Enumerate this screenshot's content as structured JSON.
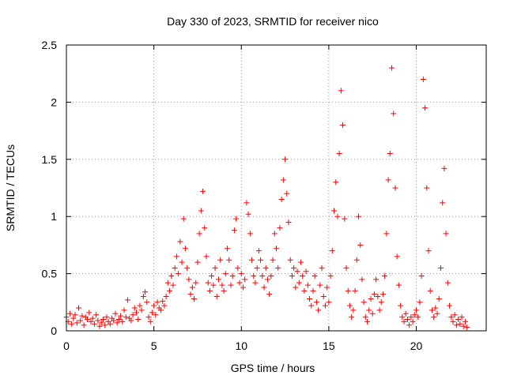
{
  "chart_data": {
    "type": "scatter",
    "title": "Day 330 of 2023, SRMTID for receiver nico",
    "xlabel": "GPS time / hours",
    "ylabel": "SRMTID / TECUs",
    "xlim": [
      0,
      24
    ],
    "ylim": [
      0,
      2.5
    ],
    "x_ticks": [
      0,
      5,
      10,
      15,
      20
    ],
    "x_tick_labels": [
      "0",
      "5",
      "10",
      "15",
      "20"
    ],
    "y_ticks": [
      0,
      0.5,
      1,
      1.5,
      2,
      2.5
    ],
    "y_tick_labels": [
      "0",
      "0.5",
      "1",
      "1.5",
      "2",
      "2.5"
    ],
    "grid": true,
    "marker": "+",
    "color": "#ff0000",
    "series": [
      {
        "name": "SRMTID",
        "points": [
          [
            0.0,
            0.12
          ],
          [
            0.1,
            0.08
          ],
          [
            0.2,
            0.15
          ],
          [
            0.3,
            0.06
          ],
          [
            0.4,
            0.11
          ],
          [
            0.5,
            0.14
          ],
          [
            0.6,
            0.07
          ],
          [
            0.7,
            0.2
          ],
          [
            0.8,
            0.09
          ],
          [
            0.9,
            0.13
          ],
          [
            1.0,
            0.05
          ],
          [
            1.1,
            0.12
          ],
          [
            1.2,
            0.1
          ],
          [
            1.3,
            0.16
          ],
          [
            1.4,
            0.08
          ],
          [
            1.5,
            0.11
          ],
          [
            1.6,
            0.06
          ],
          [
            1.7,
            0.14
          ],
          [
            1.8,
            0.09
          ],
          [
            1.9,
            0.04
          ],
          [
            2.0,
            0.07
          ],
          [
            2.1,
            0.1
          ],
          [
            2.2,
            0.05
          ],
          [
            2.3,
            0.12
          ],
          [
            2.4,
            0.08
          ],
          [
            2.5,
            0.06
          ],
          [
            2.6,
            0.11
          ],
          [
            2.7,
            0.09
          ],
          [
            2.8,
            0.15
          ],
          [
            2.9,
            0.07
          ],
          [
            3.0,
            0.1
          ],
          [
            3.1,
            0.13
          ],
          [
            3.2,
            0.08
          ],
          [
            3.3,
            0.18
          ],
          [
            3.4,
            0.12
          ],
          [
            3.5,
            0.27
          ],
          [
            3.6,
            0.11
          ],
          [
            3.7,
            0.09
          ],
          [
            3.8,
            0.14
          ],
          [
            3.9,
            0.2
          ],
          [
            4.0,
            0.16
          ],
          [
            4.1,
            0.1
          ],
          [
            4.2,
            0.22
          ],
          [
            4.3,
            0.18
          ],
          [
            4.4,
            0.3
          ],
          [
            4.5,
            0.34
          ],
          [
            4.6,
            0.25
          ],
          [
            4.7,
            0.12
          ],
          [
            4.8,
            0.08
          ],
          [
            4.9,
            0.16
          ],
          [
            5.0,
            0.22
          ],
          [
            5.1,
            0.14
          ],
          [
            5.2,
            0.25
          ],
          [
            5.3,
            0.2
          ],
          [
            5.4,
            0.18
          ],
          [
            5.5,
            0.26
          ],
          [
            5.6,
            0.22
          ],
          [
            5.7,
            0.3
          ],
          [
            5.8,
            0.42
          ],
          [
            5.9,
            0.35
          ],
          [
            6.0,
            0.48
          ],
          [
            6.1,
            0.4
          ],
          [
            6.2,
            0.55
          ],
          [
            6.3,
            0.65
          ],
          [
            6.4,
            0.5
          ],
          [
            6.5,
            0.78
          ],
          [
            6.6,
            0.6
          ],
          [
            6.7,
            0.98
          ],
          [
            6.8,
            0.72
          ],
          [
            6.9,
            0.55
          ],
          [
            7.0,
            0.45
          ],
          [
            7.1,
            0.32
          ],
          [
            7.2,
            0.38
          ],
          [
            7.3,
            0.28
          ],
          [
            7.4,
            0.42
          ],
          [
            7.5,
            0.6
          ],
          [
            7.6,
            0.85
          ],
          [
            7.7,
            1.05
          ],
          [
            7.8,
            1.22
          ],
          [
            7.9,
            0.9
          ],
          [
            8.0,
            0.65
          ],
          [
            8.1,
            0.42
          ],
          [
            8.2,
            0.35
          ],
          [
            8.3,
            0.48
          ],
          [
            8.4,
            0.4
          ],
          [
            8.5,
            0.55
          ],
          [
            8.6,
            0.3
          ],
          [
            8.7,
            0.45
          ],
          [
            8.8,
            0.62
          ],
          [
            8.9,
            0.4
          ],
          [
            9.0,
            0.35
          ],
          [
            9.1,
            0.5
          ],
          [
            9.2,
            0.72
          ],
          [
            9.3,
            0.62
          ],
          [
            9.4,
            0.4
          ],
          [
            9.5,
            0.48
          ],
          [
            9.6,
            0.88
          ],
          [
            9.7,
            0.98
          ],
          [
            9.8,
            0.55
          ],
          [
            9.9,
            0.42
          ],
          [
            10.0,
            0.5
          ],
          [
            10.1,
            0.38
          ],
          [
            10.2,
            0.45
          ],
          [
            10.3,
            1.12
          ],
          [
            10.4,
            1.02
          ],
          [
            10.5,
            0.85
          ],
          [
            10.6,
            0.62
          ],
          [
            10.7,
            0.48
          ],
          [
            10.8,
            0.42
          ],
          [
            10.9,
            0.55
          ],
          [
            11.0,
            0.7
          ],
          [
            11.1,
            0.62
          ],
          [
            11.2,
            0.48
          ],
          [
            11.3,
            0.38
          ],
          [
            11.4,
            0.55
          ],
          [
            11.5,
            0.45
          ],
          [
            11.6,
            0.32
          ],
          [
            11.7,
            0.48
          ],
          [
            11.8,
            0.62
          ],
          [
            11.9,
            0.85
          ],
          [
            12.0,
            0.72
          ],
          [
            12.1,
            0.55
          ],
          [
            12.2,
            0.9
          ],
          [
            12.3,
            1.15
          ],
          [
            12.4,
            1.32
          ],
          [
            12.5,
            1.5
          ],
          [
            12.6,
            1.2
          ],
          [
            12.7,
            0.95
          ],
          [
            12.8,
            0.62
          ],
          [
            12.9,
            0.48
          ],
          [
            13.0,
            0.55
          ],
          [
            13.1,
            0.38
          ],
          [
            13.2,
            0.52
          ],
          [
            13.3,
            0.42
          ],
          [
            13.4,
            0.6
          ],
          [
            13.5,
            0.48
          ],
          [
            13.6,
            0.35
          ],
          [
            13.7,
            0.52
          ],
          [
            13.8,
            0.4
          ],
          [
            13.9,
            0.28
          ],
          [
            14.0,
            0.22
          ],
          [
            14.1,
            0.35
          ],
          [
            14.2,
            0.48
          ],
          [
            14.3,
            0.25
          ],
          [
            14.4,
            0.18
          ],
          [
            14.5,
            0.4
          ],
          [
            14.6,
            0.55
          ],
          [
            14.7,
            0.3
          ],
          [
            14.8,
            0.22
          ],
          [
            14.9,
            0.38
          ],
          [
            15.0,
            0.25
          ],
          [
            15.1,
            0.48
          ],
          [
            15.2,
            0.7
          ],
          [
            15.3,
            1.05
          ],
          [
            15.4,
            1.3
          ],
          [
            15.5,
            1.0
          ],
          [
            15.6,
            1.55
          ],
          [
            15.7,
            2.1
          ],
          [
            15.8,
            1.8
          ],
          [
            15.9,
            0.98
          ],
          [
            16.0,
            0.55
          ],
          [
            16.1,
            0.35
          ],
          [
            16.2,
            0.22
          ],
          [
            16.3,
            0.12
          ],
          [
            16.4,
            0.18
          ],
          [
            16.5,
            0.35
          ],
          [
            16.6,
            0.62
          ],
          [
            16.7,
            1.0
          ],
          [
            16.8,
            0.75
          ],
          [
            16.9,
            0.45
          ],
          [
            17.0,
            0.25
          ],
          [
            17.1,
            0.12
          ],
          [
            17.2,
            0.08
          ],
          [
            17.3,
            0.18
          ],
          [
            17.4,
            0.28
          ],
          [
            17.5,
            0.15
          ],
          [
            17.6,
            0.32
          ],
          [
            17.7,
            0.45
          ],
          [
            17.8,
            0.3
          ],
          [
            17.9,
            0.18
          ],
          [
            18.0,
            0.25
          ],
          [
            18.1,
            0.32
          ],
          [
            18.2,
            0.48
          ],
          [
            18.3,
            0.85
          ],
          [
            18.4,
            1.32
          ],
          [
            18.5,
            1.55
          ],
          [
            18.6,
            2.3
          ],
          [
            18.7,
            1.9
          ],
          [
            18.8,
            1.25
          ],
          [
            18.9,
            0.65
          ],
          [
            19.0,
            0.4
          ],
          [
            19.1,
            0.22
          ],
          [
            19.2,
            0.12
          ],
          [
            19.3,
            0.08
          ],
          [
            19.4,
            0.15
          ],
          [
            19.5,
            0.1
          ],
          [
            19.6,
            0.05
          ],
          [
            19.7,
            0.12
          ],
          [
            19.8,
            0.08
          ],
          [
            19.9,
            0.14
          ],
          [
            20.0,
            0.18
          ],
          [
            20.1,
            0.12
          ],
          [
            20.2,
            0.25
          ],
          [
            20.3,
            0.48
          ],
          [
            20.4,
            2.2
          ],
          [
            20.5,
            1.95
          ],
          [
            20.6,
            1.25
          ],
          [
            20.7,
            0.7
          ],
          [
            20.8,
            0.35
          ],
          [
            20.9,
            0.18
          ],
          [
            21.0,
            0.12
          ],
          [
            21.1,
            0.2
          ],
          [
            21.2,
            0.15
          ],
          [
            21.3,
            0.28
          ],
          [
            21.4,
            0.55
          ],
          [
            21.5,
            1.12
          ],
          [
            21.6,
            1.42
          ],
          [
            21.7,
            0.85
          ],
          [
            21.8,
            0.42
          ],
          [
            21.9,
            0.22
          ],
          [
            22.0,
            0.12
          ],
          [
            22.1,
            0.08
          ],
          [
            22.2,
            0.14
          ],
          [
            22.3,
            0.05
          ],
          [
            22.4,
            0.1
          ],
          [
            22.5,
            0.06
          ],
          [
            22.6,
            0.12
          ],
          [
            22.7,
            0.04
          ],
          [
            22.8,
            0.08
          ],
          [
            22.9,
            0.03
          ]
        ]
      }
    ]
  }
}
